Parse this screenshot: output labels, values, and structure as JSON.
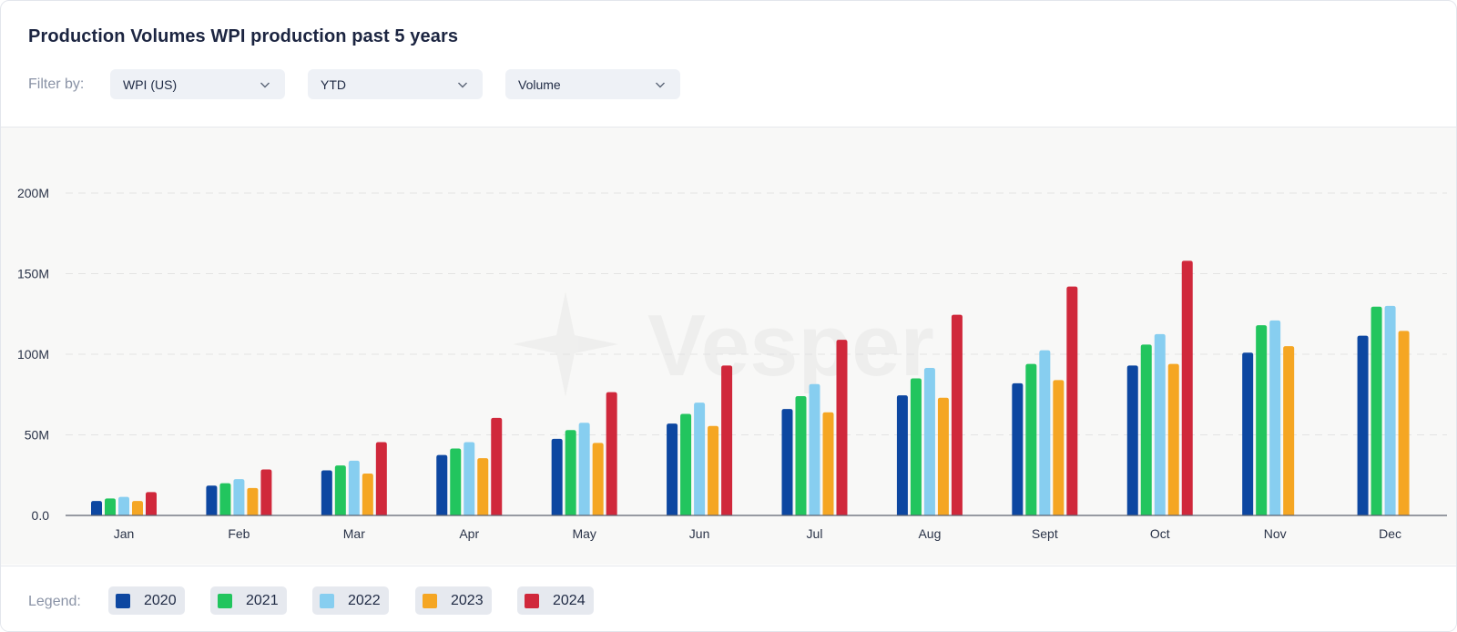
{
  "header": {
    "title": "Production Volumes WPI production past 5 years",
    "filter_label": "Filter by:",
    "filters": [
      {
        "value": "WPI (US)",
        "icon": "chevron-down-icon"
      },
      {
        "value": "YTD",
        "icon": "chevron-down-icon"
      },
      {
        "value": "Volume",
        "icon": "chevron-down-icon"
      }
    ]
  },
  "watermark": "Vesper",
  "legend": {
    "label": "Legend:",
    "items": [
      "2020",
      "2021",
      "2022",
      "2023",
      "2024"
    ]
  },
  "colors": {
    "2020": "#0d47a1",
    "2021": "#22c55e",
    "2022": "#87cef0",
    "2023": "#f5a623",
    "2024": "#d0283b"
  },
  "chart_data": {
    "type": "bar",
    "categories": [
      "Jan",
      "Feb",
      "Mar",
      "Apr",
      "May",
      "Jun",
      "Jul",
      "Aug",
      "Sept",
      "Oct",
      "Nov",
      "Dec"
    ],
    "series": [
      {
        "name": "2020",
        "values": [
          9,
          18.5,
          28,
          37.5,
          47.5,
          57,
          66,
          74.5,
          82,
          93,
          101,
          111.5
        ]
      },
      {
        "name": "2021",
        "values": [
          10.5,
          20,
          31,
          41.5,
          53,
          63,
          74,
          85,
          94,
          106,
          118,
          129.5
        ]
      },
      {
        "name": "2022",
        "values": [
          11.5,
          22.5,
          34,
          45.5,
          57.5,
          70,
          81.5,
          91.5,
          102.5,
          112.5,
          121,
          130
        ]
      },
      {
        "name": "2023",
        "values": [
          9,
          17,
          26,
          35.5,
          45,
          55.5,
          64,
          73,
          84,
          94,
          105,
          114.5
        ]
      },
      {
        "name": "2024",
        "values": [
          14.5,
          28.5,
          45.5,
          60.5,
          76.5,
          93,
          109,
          124.5,
          142,
          158,
          null,
          null
        ]
      }
    ],
    "ylim": [
      0,
      200
    ],
    "yticks": [
      "0.0",
      "50M",
      "100M",
      "150M",
      "200M"
    ],
    "ytick_values": [
      0,
      50,
      100,
      150,
      200
    ],
    "ylabel": "",
    "xlabel": "",
    "grid": true,
    "legend_position": "bottom"
  }
}
